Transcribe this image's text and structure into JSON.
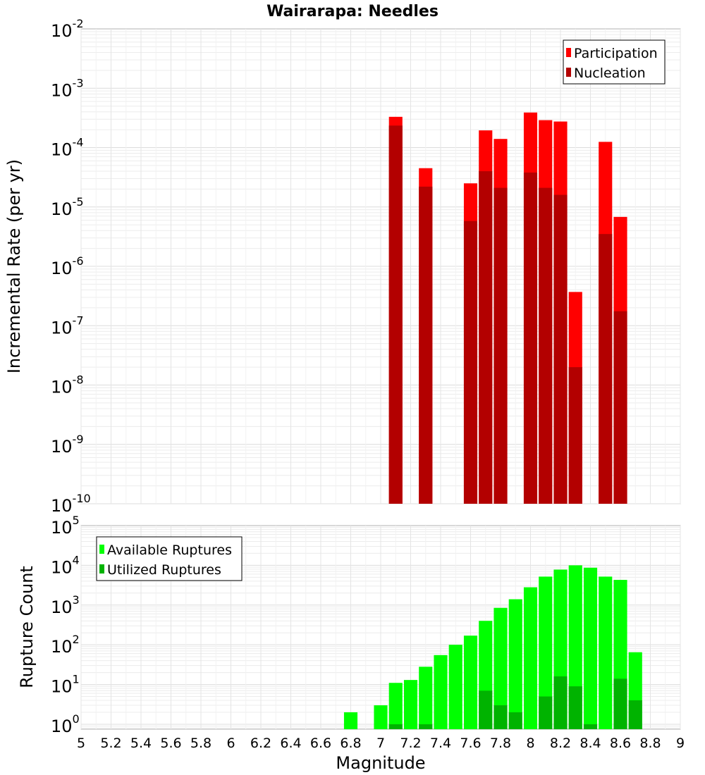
{
  "chart_data": [
    {
      "type": "bar",
      "title": "Wairarapa: Needles",
      "xlabel": "",
      "ylabel": "Incremental Rate (per yr)",
      "xlim": [
        5,
        9
      ],
      "ylim": [
        1e-10,
        0.01
      ],
      "yscale": "log",
      "grid": true,
      "legend_position": "top-right",
      "y_ticks": [
        {
          "base": "10",
          "exp": "-10"
        },
        {
          "base": "10",
          "exp": "-9"
        },
        {
          "base": "10",
          "exp": "-8"
        },
        {
          "base": "10",
          "exp": "-7"
        },
        {
          "base": "10",
          "exp": "-6"
        },
        {
          "base": "10",
          "exp": "-5"
        },
        {
          "base": "10",
          "exp": "-4"
        },
        {
          "base": "10",
          "exp": "-3"
        },
        {
          "base": "10",
          "exp": "-2"
        }
      ],
      "x": [
        7.1,
        7.3,
        7.6,
        7.7,
        7.8,
        8.0,
        8.1,
        8.2,
        8.3,
        8.5,
        8.6
      ],
      "series": [
        {
          "name": "Participation",
          "color": "#ff0000",
          "values": [
            0.00033,
            4.5e-05,
            2.5e-05,
            0.000195,
            0.00014,
            0.00039,
            0.00029,
            0.000275,
            3.7e-07,
            0.000125,
            6.8e-06
          ]
        },
        {
          "name": "Nucleation",
          "color": "#b30000",
          "values": [
            0.000235,
            2.2e-05,
            5.8e-06,
            4e-05,
            2.1e-05,
            3.8e-05,
            2.1e-05,
            1.6e-05,
            2e-08,
            3.5e-06,
            1.75e-07
          ]
        }
      ]
    },
    {
      "type": "bar",
      "title": "",
      "xlabel": "Magnitude",
      "ylabel": "Rupture Count",
      "xlim": [
        5,
        9
      ],
      "ylim": [
        0.75,
        100000
      ],
      "yscale": "log",
      "grid": true,
      "legend_position": "top-left",
      "x_ticks": [
        "5",
        "5.2",
        "5.4",
        "5.6",
        "5.8",
        "6",
        "6.2",
        "6.4",
        "6.6",
        "6.8",
        "7",
        "7.2",
        "7.4",
        "7.6",
        "7.8",
        "8",
        "8.2",
        "8.4",
        "8.6",
        "8.8",
        "9"
      ],
      "y_ticks": [
        {
          "base": "10",
          "exp": "0"
        },
        {
          "base": "10",
          "exp": "1"
        },
        {
          "base": "10",
          "exp": "2"
        },
        {
          "base": "10",
          "exp": "3"
        },
        {
          "base": "10",
          "exp": "4"
        },
        {
          "base": "10",
          "exp": "5"
        }
      ],
      "x": [
        6.8,
        6.9,
        7.0,
        7.1,
        7.2,
        7.3,
        7.4,
        7.5,
        7.6,
        7.7,
        7.8,
        7.9,
        8.0,
        8.1,
        8.2,
        8.3,
        8.4,
        8.5,
        8.6,
        8.7
      ],
      "series": [
        {
          "name": "Available Ruptures",
          "color": "#00ff00",
          "values": [
            2,
            0,
            3,
            11,
            13,
            28,
            55,
            100,
            170,
            400,
            850,
            1400,
            2800,
            5200,
            7800,
            10000,
            8700,
            5200,
            4300,
            65
          ]
        },
        {
          "name": "Utilized Ruptures",
          "color": "#00b300",
          "values": [
            0,
            0,
            0,
            1,
            0,
            1,
            0,
            0,
            0,
            7,
            3,
            2,
            0,
            5,
            16,
            9,
            1,
            0,
            14,
            4
          ]
        }
      ]
    }
  ]
}
